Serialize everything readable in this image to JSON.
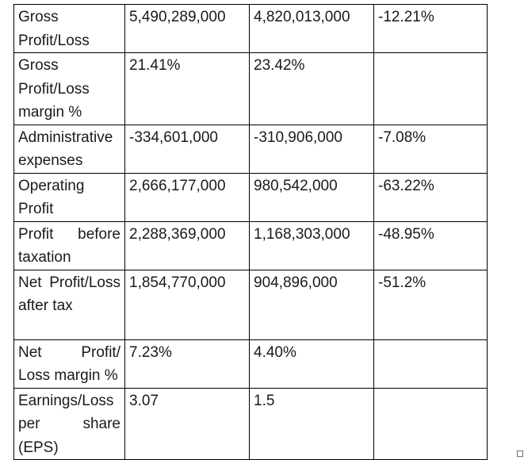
{
  "rows": [
    {
      "label": "Gross Profit/Loss",
      "v1": "5,490,289,000",
      "v2": "4,820,013,000",
      "change": "-12.21%"
    },
    {
      "label": "Gross Profit/Loss margin %",
      "v1": "21.41%",
      "v2": "23.42%",
      "change": ""
    },
    {
      "label": "Administrative expenses",
      "v1": "-334,601,000",
      "v2": "-310,906,000",
      "change": "-7.08%"
    },
    {
      "label": "Operating Profit",
      "v1": "2,666,177,000",
      "v2": "980,542,000",
      "change": "-63.22%"
    },
    {
      "label": "Profit before taxation",
      "v1": "2,288,369,000",
      "v2": "1,168,303,000",
      "change": "-48.95%"
    },
    {
      "label": "Net Profit/Loss after tax",
      "v1": "1,854,770,000",
      "v2": "904,896,000",
      "change": "-51.2%"
    },
    {
      "label": "Net Profit/ Loss margin %",
      "v1": "7.23%",
      "v2": "4.40%",
      "change": ""
    },
    {
      "label": "Earnings/Loss per share (EPS)",
      "v1": "3.07",
      "v2": "1.5",
      "change": ""
    }
  ]
}
